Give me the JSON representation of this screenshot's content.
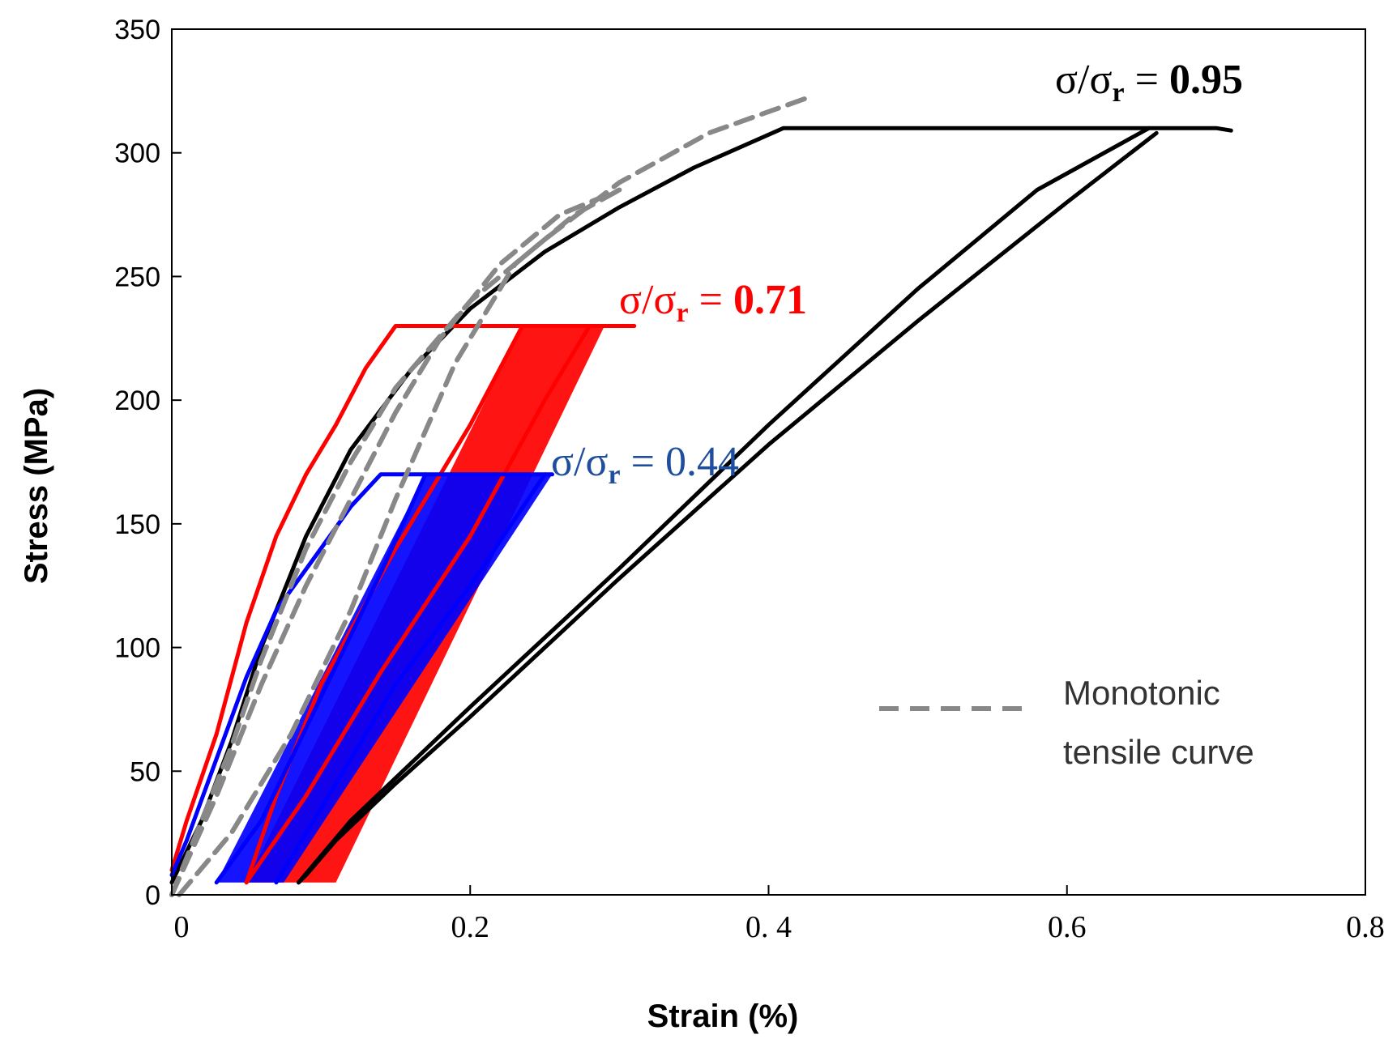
{
  "chart_data": {
    "type": "line",
    "title": "",
    "xlabel": "Strain (%)",
    "ylabel": "Stress (MPa)",
    "xlim": [
      0,
      0.8
    ],
    "ylim": [
      0,
      350
    ],
    "x_ticks": [
      "0",
      "0.2",
      "0. 4",
      "0.6",
      "0.8"
    ],
    "x_tick_values": [
      0,
      0.2,
      0.4,
      0.6,
      0.8
    ],
    "y_ticks": [
      "0",
      "50",
      "100",
      "150",
      "200",
      "250",
      "300",
      "350"
    ],
    "y_tick_values": [
      0,
      50,
      100,
      150,
      200,
      250,
      300,
      350
    ],
    "grid": false,
    "colors": {
      "high": "#000000",
      "mid": "#ff0000",
      "low": "#0000ff",
      "monotonic": "#888888",
      "label_low": "#1f4e9e"
    },
    "legend": {
      "position": "bottom-right",
      "label_line1": "Monotonic",
      "label_line2": "tensile curve"
    },
    "annotations": [
      {
        "prefix": "σ/σ",
        "sub": "r",
        "eq": " = ",
        "value": "0.95",
        "series": "high"
      },
      {
        "prefix": "σ/σ",
        "sub": "r",
        "eq": " = ",
        "value": "0.71",
        "series": "mid"
      },
      {
        "prefix": "σ/σ",
        "sub": "r",
        "eq": " = ",
        "value": "0.44",
        "series": "low"
      }
    ],
    "series": [
      {
        "name": "σ/σr = 0.95 first loading",
        "color_key": "high",
        "points": [
          [
            0,
            5
          ],
          [
            0.02,
            30
          ],
          [
            0.04,
            62
          ],
          [
            0.06,
            100
          ],
          [
            0.09,
            145
          ],
          [
            0.12,
            180
          ],
          [
            0.16,
            212
          ],
          [
            0.2,
            237
          ],
          [
            0.25,
            260
          ],
          [
            0.3,
            278
          ],
          [
            0.35,
            294
          ],
          [
            0.41,
            310
          ],
          [
            0.65,
            310
          ],
          [
            0.7,
            310
          ],
          [
            0.71,
            309
          ]
        ]
      },
      {
        "name": "σ/σr = 0.95 unloading",
        "color_key": "high",
        "points": [
          [
            0.66,
            308
          ],
          [
            0.6,
            280
          ],
          [
            0.5,
            232
          ],
          [
            0.4,
            182
          ],
          [
            0.3,
            128
          ],
          [
            0.2,
            72
          ],
          [
            0.15,
            45
          ],
          [
            0.11,
            22
          ],
          [
            0.09,
            8
          ],
          [
            0.085,
            5
          ]
        ]
      },
      {
        "name": "σ/σr = 0.95 reloading",
        "color_key": "high",
        "points": [
          [
            0.085,
            5
          ],
          [
            0.12,
            30
          ],
          [
            0.2,
            76
          ],
          [
            0.3,
            132
          ],
          [
            0.4,
            190
          ],
          [
            0.5,
            245
          ],
          [
            0.58,
            285
          ],
          [
            0.655,
            310
          ]
        ]
      },
      {
        "name": "σ/σr = 0.71 first loading",
        "color_key": "mid",
        "points": [
          [
            0,
            10
          ],
          [
            0.01,
            30
          ],
          [
            0.03,
            65
          ],
          [
            0.05,
            110
          ],
          [
            0.07,
            145
          ],
          [
            0.09,
            170
          ],
          [
            0.11,
            190
          ],
          [
            0.13,
            213
          ],
          [
            0.15,
            230
          ],
          [
            0.31,
            230
          ]
        ]
      },
      {
        "name": "σ/σr = 0.71 unloading",
        "color_key": "mid",
        "points": [
          [
            0.235,
            230
          ],
          [
            0.2,
            190
          ],
          [
            0.15,
            140
          ],
          [
            0.1,
            85
          ],
          [
            0.07,
            40
          ],
          [
            0.05,
            5
          ]
        ]
      },
      {
        "name": "σ/σr = 0.71 reloading",
        "color_key": "mid",
        "points": [
          [
            0.05,
            5
          ],
          [
            0.09,
            40
          ],
          [
            0.14,
            90
          ],
          [
            0.2,
            145
          ],
          [
            0.25,
            200
          ],
          [
            0.28,
            230
          ]
        ]
      },
      {
        "name": "σ/σr = 0.44 first loading",
        "color_key": "low",
        "points": [
          [
            0,
            8
          ],
          [
            0.01,
            22
          ],
          [
            0.03,
            55
          ],
          [
            0.05,
            88
          ],
          [
            0.07,
            115
          ],
          [
            0.1,
            140
          ],
          [
            0.12,
            157
          ],
          [
            0.14,
            170
          ],
          [
            0.255,
            170
          ]
        ]
      },
      {
        "name": "σ/σr = 0.44 unloading",
        "color_key": "low",
        "points": [
          [
            0.17,
            170
          ],
          [
            0.14,
            130
          ],
          [
            0.1,
            80
          ],
          [
            0.06,
            30
          ],
          [
            0.03,
            5
          ]
        ]
      },
      {
        "name": "σ/σr = 0.44 reloading",
        "color_key": "low",
        "points": [
          [
            0.07,
            5
          ],
          [
            0.1,
            35
          ],
          [
            0.15,
            85
          ],
          [
            0.2,
            125
          ],
          [
            0.25,
            170
          ]
        ]
      },
      {
        "name": "Monotonic tensile curve A",
        "color_key": "monotonic",
        "dashed": true,
        "points": [
          [
            0,
            0
          ],
          [
            0.02,
            30
          ],
          [
            0.04,
            60
          ],
          [
            0.06,
            95
          ],
          [
            0.09,
            140
          ],
          [
            0.12,
            175
          ],
          [
            0.15,
            205
          ],
          [
            0.2,
            240
          ],
          [
            0.25,
            265
          ],
          [
            0.3,
            288
          ],
          [
            0.36,
            308
          ],
          [
            0.425,
            322
          ]
        ]
      },
      {
        "name": "Monotonic tensile curve B",
        "color_key": "monotonic",
        "dashed": true,
        "points": [
          [
            0,
            0
          ],
          [
            0.03,
            40
          ],
          [
            0.06,
            85
          ],
          [
            0.09,
            125
          ],
          [
            0.12,
            160
          ],
          [
            0.15,
            195
          ],
          [
            0.18,
            225
          ],
          [
            0.22,
            255
          ],
          [
            0.26,
            275
          ],
          [
            0.3,
            285
          ]
        ]
      },
      {
        "name": "Monotonic tensile curve C",
        "color_key": "monotonic",
        "dashed": true,
        "points": [
          [
            0.005,
            0
          ],
          [
            0.04,
            25
          ],
          [
            0.08,
            65
          ],
          [
            0.12,
            115
          ],
          [
            0.15,
            160
          ],
          [
            0.19,
            215
          ],
          [
            0.23,
            255
          ],
          [
            0.27,
            275
          ],
          [
            0.3,
            285
          ]
        ]
      }
    ],
    "bands": [
      {
        "name": "σ/σr = 0.71 cycle band",
        "color_key": "mid",
        "points": [
          [
            0.05,
            5
          ],
          [
            0.235,
            230
          ],
          [
            0.29,
            230
          ],
          [
            0.11,
            5
          ]
        ]
      },
      {
        "name": "σ/σr = 0.44 cycle band",
        "color_key": "low",
        "points": [
          [
            0.03,
            5
          ],
          [
            0.17,
            170
          ],
          [
            0.255,
            170
          ],
          [
            0.075,
            5
          ]
        ]
      }
    ]
  }
}
